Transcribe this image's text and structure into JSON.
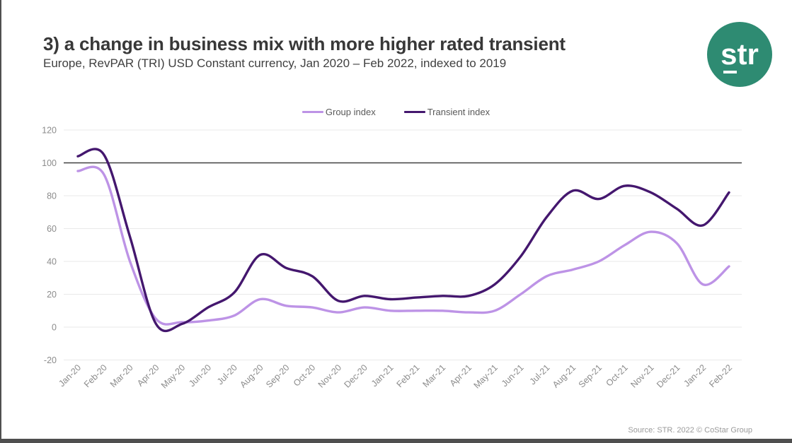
{
  "slide": {
    "title": "3) a change in business mix with more higher rated transient",
    "subtitle": "Europe, RevPAR (TRI)  USD Constant currency, Jan 2020 – Feb 2022, indexed to 2019",
    "source": "Source: STR. 2022 © CoStar Group",
    "logo_text": "str"
  },
  "colors": {
    "group": "#bd93e6",
    "transient": "#44176e",
    "logo_bg": "#2e8b72",
    "baseline": "#404040",
    "gridline": "#e9e9e9",
    "axis_text": "#8c8c8c"
  },
  "chart_data": {
    "type": "line",
    "title": "Europe RevPAR (TRI) indexed to 2019",
    "xlabel": "",
    "ylabel": "",
    "ylim": [
      -20,
      120
    ],
    "yticks": [
      120,
      100,
      80,
      60,
      40,
      20,
      0,
      -20
    ],
    "baseline_value": 100,
    "grid": true,
    "smooth": true,
    "legend_position": "top-center",
    "categories": [
      "Jan-20",
      "Feb-20",
      "Mar-20",
      "Apr-20",
      "May-20",
      "Jun-20",
      "Jul-20",
      "Aug-20",
      "Sep-20",
      "Oct-20",
      "Nov-20",
      "Dec-20",
      "Jan-21",
      "Feb-21",
      "Mar-21",
      "Apr-21",
      "May-21",
      "Jun-21",
      "Jul-21",
      "Aug-21",
      "Sep-21",
      "Oct-21",
      "Nov-21",
      "Dec-21",
      "Jan-22",
      "Feb-22"
    ],
    "series": [
      {
        "name": "Group index",
        "color_key": "group",
        "values": [
          95,
          93,
          40,
          5,
          3,
          4,
          7,
          17,
          13,
          12,
          9,
          12,
          10,
          10,
          10,
          9,
          10,
          20,
          31,
          35,
          40,
          50,
          58,
          51,
          26,
          37
        ]
      },
      {
        "name": "Transient index",
        "color_key": "transient",
        "values": [
          104,
          105,
          55,
          2,
          2,
          12,
          21,
          44,
          36,
          31,
          16,
          19,
          17,
          18,
          19,
          19,
          26,
          43,
          67,
          83,
          78,
          86,
          82,
          72,
          62,
          82
        ]
      }
    ]
  }
}
